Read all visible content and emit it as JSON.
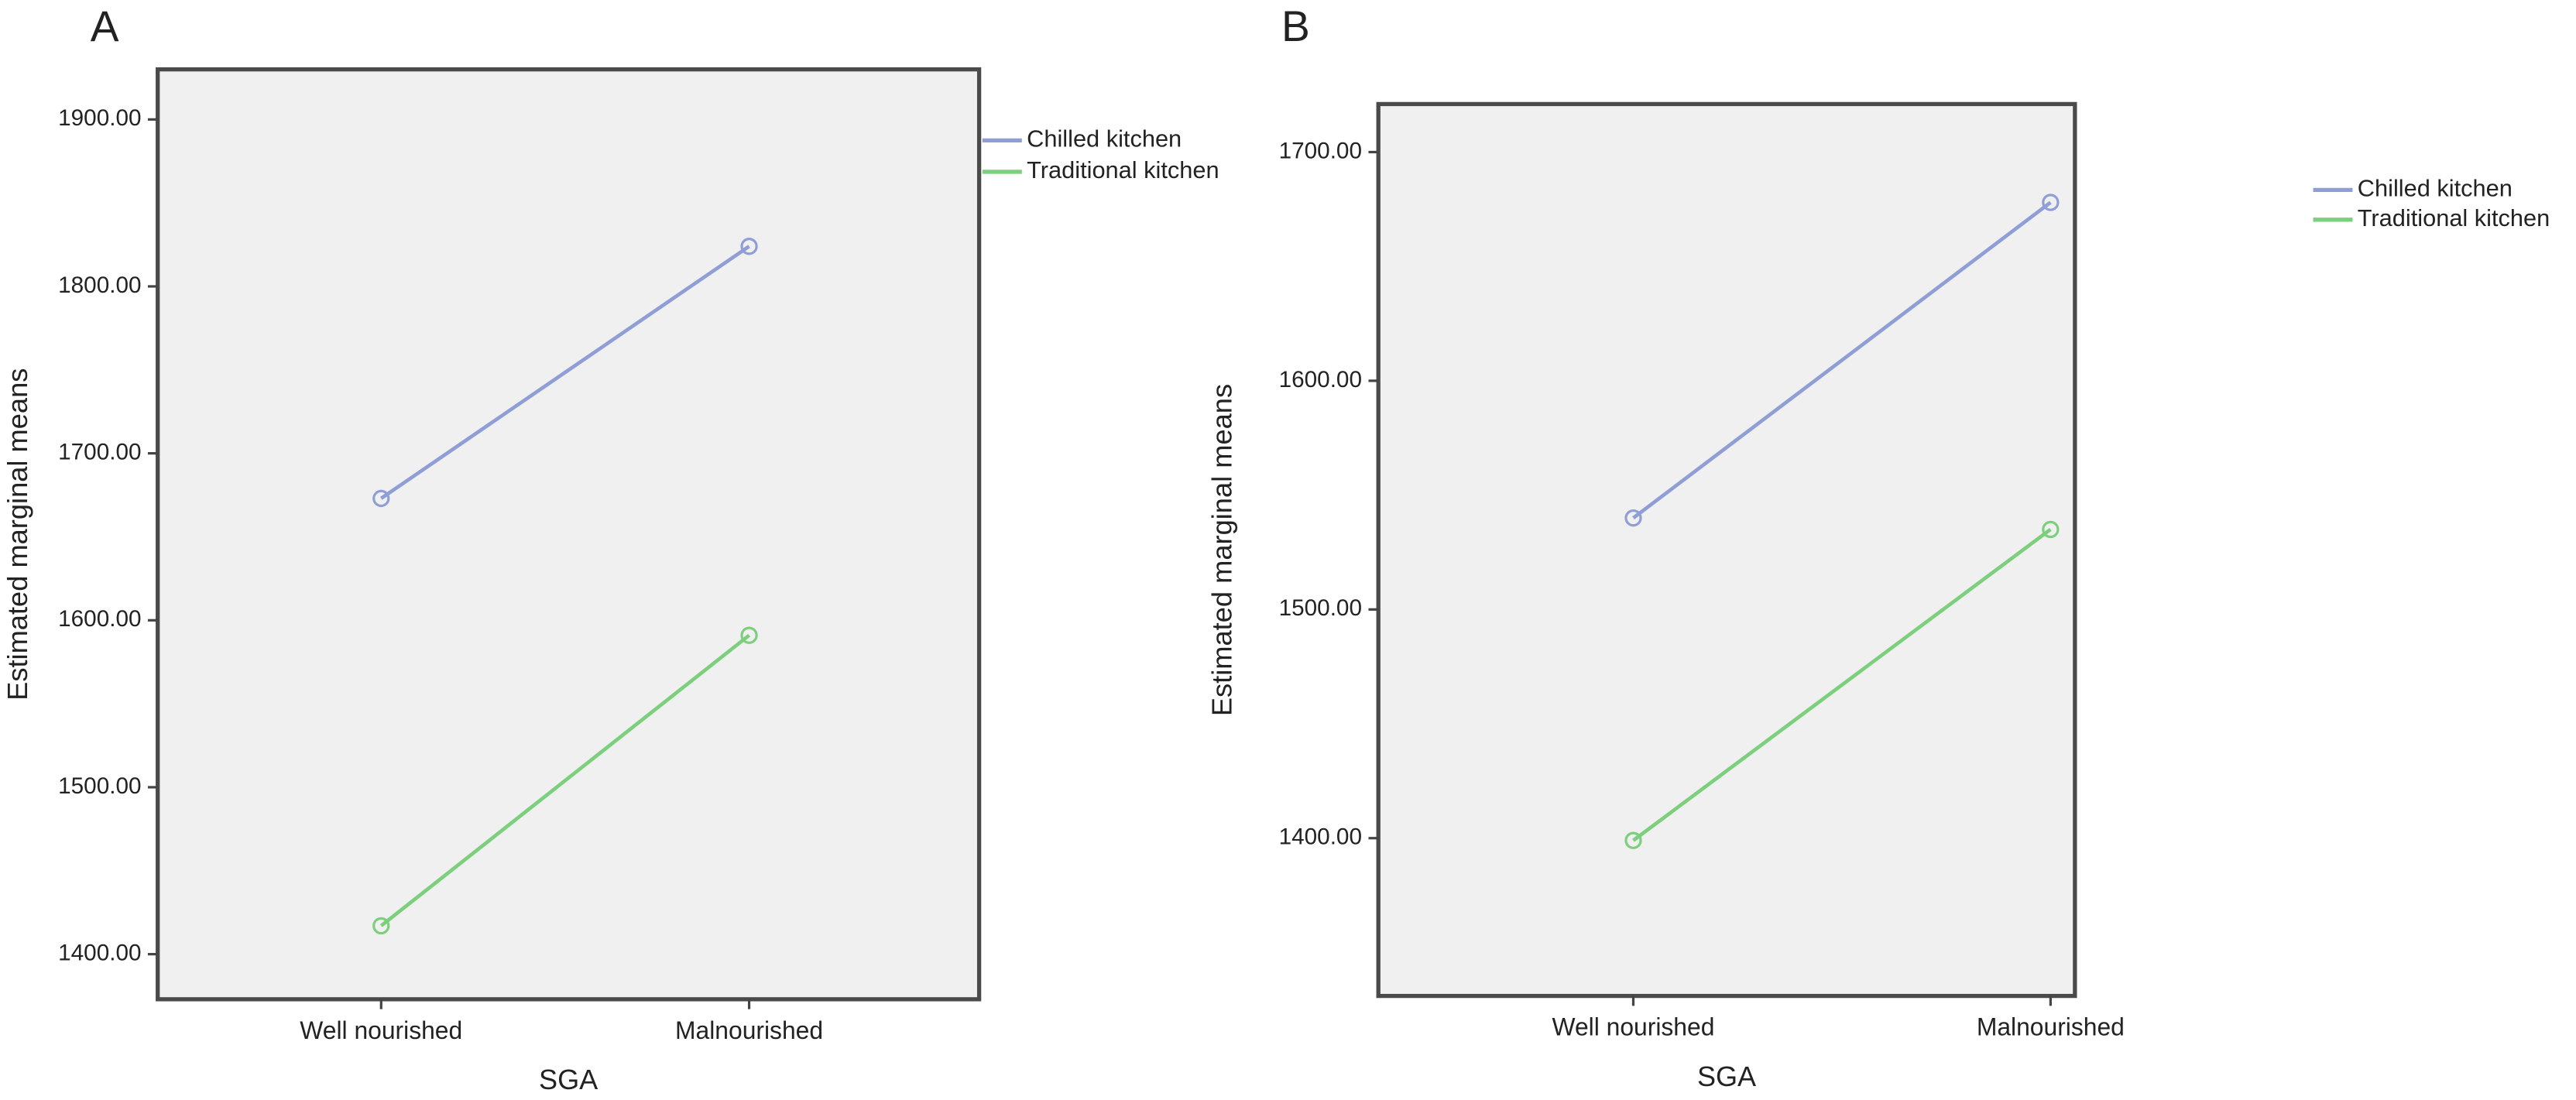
{
  "chart_data": [
    {
      "type": "line",
      "title": "A",
      "x_label": "SGA",
      "y_label": "Estimated marginal means",
      "categories": [
        "Well nourished",
        "Malnourished"
      ],
      "series": [
        {
          "name": "Chilled kitchen",
          "color": "#8f9fd6",
          "values": [
            1673,
            1824
          ]
        },
        {
          "name": "Traditional kitchen",
          "color": "#7ccf7c",
          "values": [
            1417,
            1591
          ]
        }
      ],
      "ylim": [
        1373,
        1930
      ],
      "yticks": [
        {
          "value": 1400,
          "label": "1400.00"
        },
        {
          "value": 1500,
          "label": "1500.00"
        },
        {
          "value": 1600,
          "label": "1600.00"
        },
        {
          "value": 1700,
          "label": "1700.00"
        },
        {
          "value": 1800,
          "label": "1800.00"
        },
        {
          "value": 1900,
          "label": "1900.00"
        }
      ],
      "grid": false,
      "legend": "outside-right"
    },
    {
      "type": "line",
      "title": "B",
      "x_label": "SGA",
      "y_label": "Estimated marginal means",
      "categories": [
        "Well nourished",
        "Malnourished"
      ],
      "series": [
        {
          "name": "Chilled kitchen",
          "color": "#8f9fd6",
          "values": [
            1540,
            1678
          ]
        },
        {
          "name": "Traditional kitchen",
          "color": "#7ccf7c",
          "values": [
            1399,
            1535
          ]
        }
      ],
      "ylim": [
        1331,
        1721
      ],
      "yticks": [
        {
          "value": 1400,
          "label": "1400.00"
        },
        {
          "value": 1500,
          "label": "1500.00"
        },
        {
          "value": 1600,
          "label": "1600.00"
        },
        {
          "value": 1700,
          "label": "1700.00"
        }
      ],
      "grid": false,
      "legend": "outside-right"
    }
  ]
}
